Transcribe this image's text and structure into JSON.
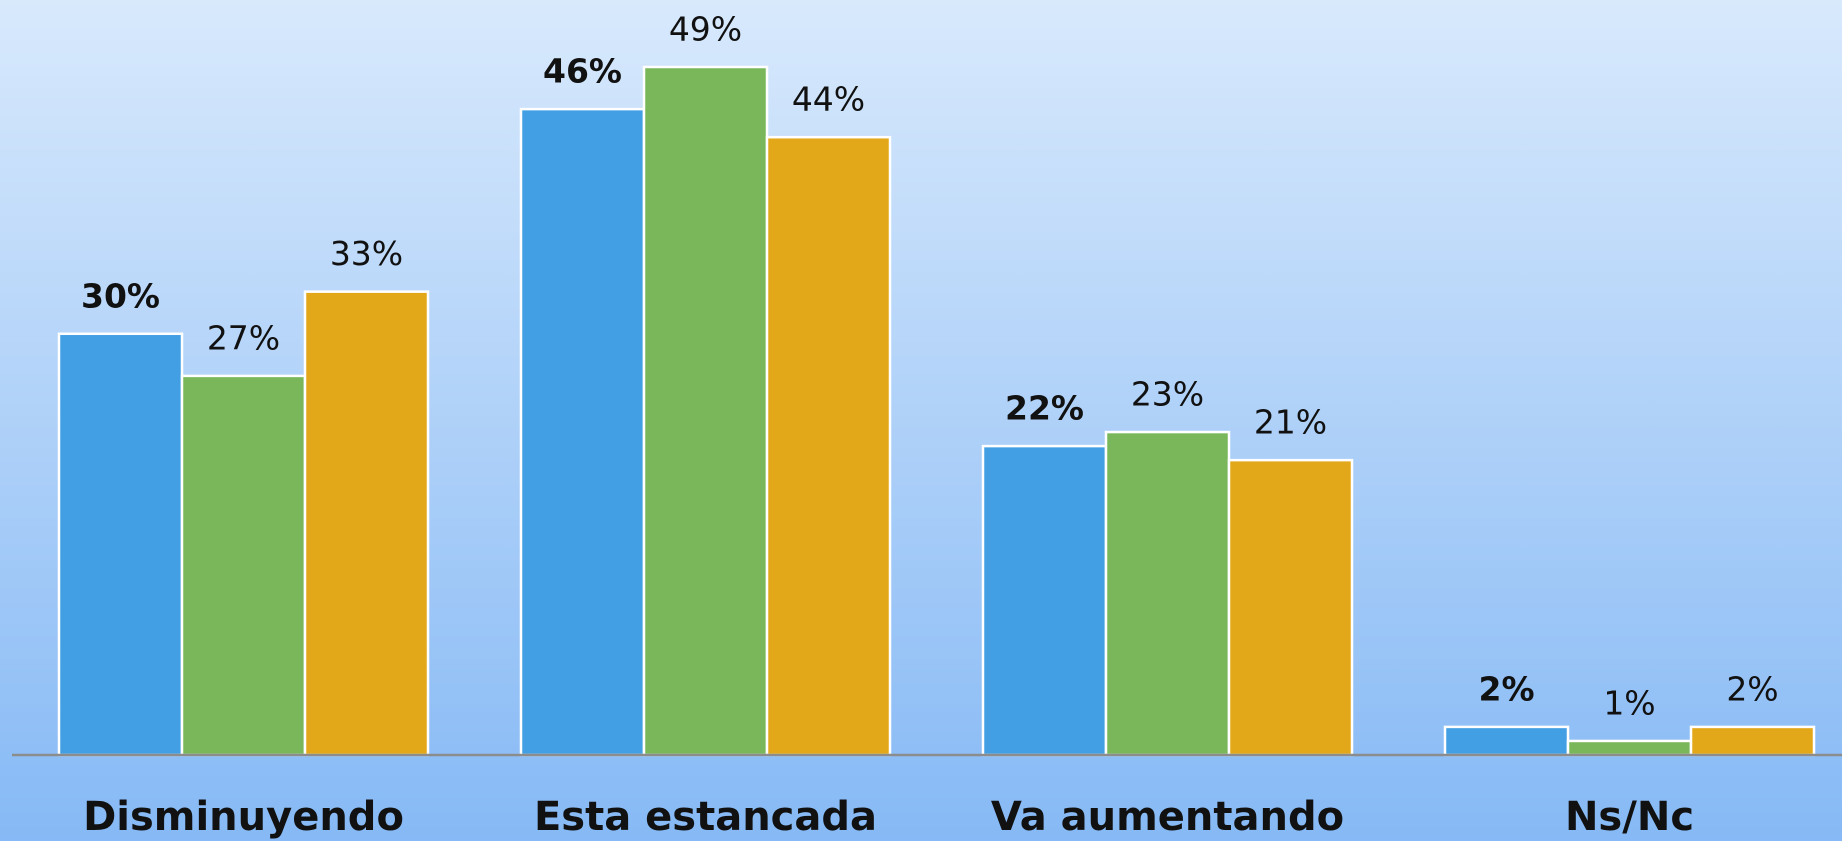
{
  "chart_data": {
    "type": "bar",
    "categories": [
      "Disminuyendo",
      "Esta estancada",
      "Va aumentando",
      "Ns/Nc"
    ],
    "series": [
      {
        "color": "#439fe3",
        "values": [
          30,
          46,
          22,
          2
        ],
        "value_labels": [
          "30%",
          "46%",
          "22%",
          "2%"
        ]
      },
      {
        "color": "#79b75a",
        "values": [
          27,
          49,
          23,
          1
        ],
        "value_labels": [
          "27%",
          "49%",
          "23%",
          "1%"
        ]
      },
      {
        "color": "#e3a81a",
        "values": [
          33,
          44,
          21,
          2
        ],
        "value_labels": [
          "33%",
          "44%",
          "21%",
          "2%"
        ]
      }
    ]
  }
}
